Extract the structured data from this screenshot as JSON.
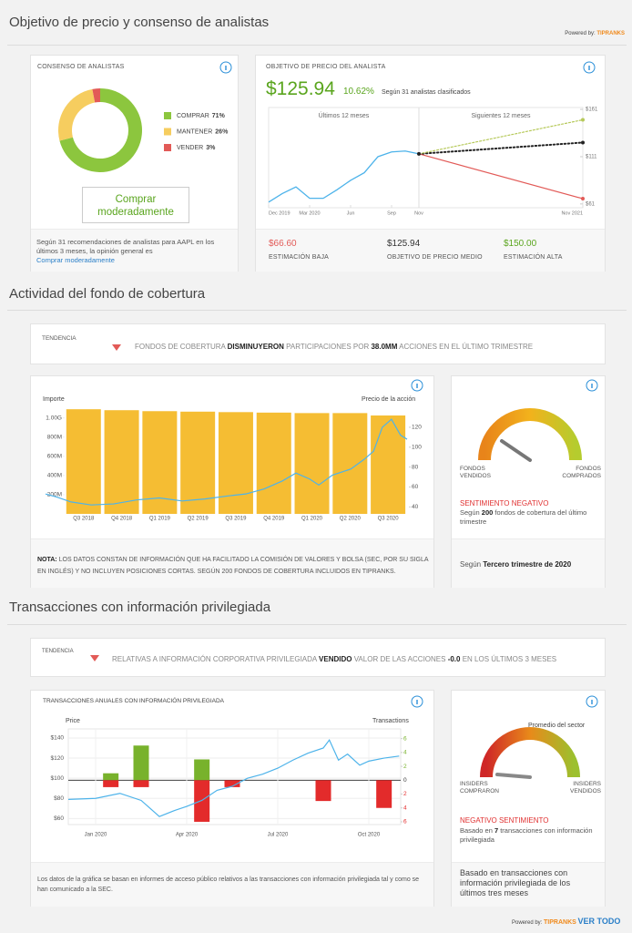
{
  "price_section": {
    "title": "Objetivo de precio y consenso de analistas",
    "powered_by": "Powered by:",
    "brand": "TIPRANKS"
  },
  "hedge_section": {
    "title": "Actividad del fondo de cobertura",
    "trend_label": "TENDENCIA",
    "trend_parts": [
      "FONDOS DE COBERTURA ",
      "DISMINUYERON",
      " PARTICIPACIONES POR ",
      "38.0MM",
      " ACCIONES EN EL ÚLTIMO TRIMESTRE"
    ],
    "note_parts": [
      "NOTA:",
      " LOS DATOS CONSTAN DE INFORMACIÓN QUE HA FACILITADO LA COMISIÓN DE VALORES Y BOLSA (SEC, POR SU SIGLA EN INGLÉS) Y NO INCLUYEN POSICIONES CORTAS. SEGÚN 200 FONDOS DE COBERTURA INCLUIDOS EN TIPRANKS."
    ],
    "gauge": {
      "left": "FONDOS VENDIDOS",
      "right": "FONDOS COMPRADOS",
      "sentiment": "SENTIMIENTO NEGATIVO",
      "basis_parts": [
        "Según ",
        "200",
        " fondos de cobertura del último trimestre"
      ],
      "period_parts": [
        "Según ",
        "Tercero trimestre de 2020"
      ]
    }
  },
  "insider_section": {
    "title": "Transacciones con información privilegiada",
    "trend_label": "TENDENCIA",
    "trend_parts": [
      "RELATIVAS A INFORMACIÓN CORPORATIVA PRIVILEGIADA ",
      "VENDIDO",
      " VALOR DE LAS ACCIONES ",
      "-0.0",
      " EN LOS ÚLTIMOS 3 MESES"
    ],
    "note": "Los datos de la gráfica se basan en informes de acceso público relativos a las transacciones con información privilegiada tal y como se han comunicado a la SEC.",
    "gauge": {
      "sector": "Promedio del sector",
      "left": "INSIDERS COMPRARON",
      "right": "INSIDERS VENDIDOS",
      "sentiment": "NEGATIVO SENTIMIENTO",
      "basis_parts": [
        "Basado en ",
        "7",
        " transacciones con información privilegiada"
      ],
      "footer": "Basado en transacciones con información privilegiada de los últimos tres meses"
    }
  },
  "footer": {
    "powered_by": "Powered by:",
    "brand": "TIPRANKS",
    "link": "VER TODO"
  },
  "chart_data": [
    {
      "type": "pie",
      "title": "CONSENSO DE ANALISTAS",
      "categories": [
        "COMPRAR",
        "MANTENER",
        "VENDER"
      ],
      "values": [
        71,
        26,
        3
      ],
      "value_labels": [
        "71%",
        "26%",
        "3%"
      ],
      "colors": [
        "#8cc63e",
        "#f6cd5f",
        "#e25a57"
      ],
      "consensus": "Comprar moderadamente",
      "summary": "Según 31 recomendaciones de analistas para AAPL en los últimos 3 meses, la opinión general es"
    },
    {
      "type": "line",
      "title": "OBJETIVO DE PRECIO DEL ANALISTA",
      "upside": "10.62%",
      "basis": "Según 31 analistas clasificados",
      "period_labels": [
        "Últimos 12 meses",
        "Siguientes 12 meses"
      ],
      "series": [
        {
          "color": "#4db3ea",
          "x": [
            0,
            1,
            2,
            3,
            4,
            5,
            6,
            7,
            8,
            9,
            10,
            11
          ],
          "values": [
            63,
            72,
            79,
            67,
            67,
            76,
            86,
            94,
            111,
            116,
            117,
            114
          ]
        }
      ],
      "targets": [
        {
          "name": "ESTIMACIÓN BAJA",
          "value": 66.6,
          "label": "$66.60",
          "color": "#e25a57"
        },
        {
          "name": "OBJETIVO DE PRECIO MEDIO",
          "value": 125.94,
          "label": "$125.94",
          "color": "#222222"
        },
        {
          "name": "ESTIMACIÓN ALTA",
          "value": 150,
          "label": "$150.00",
          "color": "#b6c95a"
        }
      ],
      "xlim": [
        0,
        23
      ],
      "xticks": [
        {
          "value": 0,
          "label": "Dec 2019"
        },
        {
          "value": 3,
          "label": "Mar 2020"
        },
        {
          "value": 6,
          "label": "Jun"
        },
        {
          "value": 9,
          "label": "Sep"
        },
        {
          "value": 11,
          "label": "Nov"
        },
        {
          "value": 23,
          "label": "Nov 2021"
        }
      ],
      "ylim": [
        57,
        163
      ],
      "yticks": [
        {
          "value": 161,
          "label": "$161"
        },
        {
          "value": 111,
          "label": "$111"
        },
        {
          "value": 61,
          "label": "$61"
        }
      ]
    },
    {
      "type": "bar",
      "ylabel": "Importe",
      "y2label": "Precio de la acción",
      "categories": [
        "Q3 2018",
        "Q4 2018",
        "Q1 2019",
        "Q2 2019",
        "Q3 2019",
        "Q4 2019",
        "Q1 2020",
        "Q2 2020",
        "Q3 2020"
      ],
      "series": [
        {
          "type": "bar",
          "color": "#f5bd33",
          "values": [
            1090,
            1080,
            1070,
            1065,
            1060,
            1055,
            1050,
            1050,
            1025
          ]
        },
        {
          "type": "line",
          "axis": "y2",
          "color": "#4db3ea",
          "x": [
            -1,
            -0.71,
            -0.33,
            0.2,
            0.79,
            1.39,
            1.99,
            2.59,
            3.19,
            3.79,
            4.26,
            4.74,
            5.22,
            5.58,
            5.94,
            6.18,
            6.54,
            7.02,
            7.38,
            7.62,
            7.85,
            8.09,
            8.33,
            8.5
          ],
          "values": [
            53,
            50,
            45,
            42,
            43,
            47,
            49,
            46,
            48,
            51,
            53,
            58,
            66,
            74,
            68,
            62,
            72,
            78,
            88,
            96,
            120,
            128,
            112,
            108
          ]
        }
      ],
      "xlim": [
        -1,
        8.5
      ],
      "ylim": [
        0,
        1120
      ],
      "yticks": [
        {
          "value": 200,
          "label": "200M"
        },
        {
          "value": 400,
          "label": "400M"
        },
        {
          "value": 600,
          "label": "600M"
        },
        {
          "value": 800,
          "label": "800M"
        },
        {
          "value": 1000,
          "label": "1.00G"
        }
      ],
      "y2lim": [
        33,
        141
      ],
      "y2ticks": [
        40,
        60,
        80,
        100,
        120
      ]
    },
    {
      "type": "bar",
      "title": "TRANSACCIONES ANUALES CON INFORMACIÓN PRIVILEGIADA",
      "ylabel": "Price",
      "y2label": "Transactions",
      "grid": true,
      "series": [
        {
          "type": "bar",
          "axis": "y2",
          "color": "#78b22c",
          "x": [
            0.5,
            1.5,
            3.5
          ],
          "values": [
            1,
            5,
            3
          ]
        },
        {
          "type": "bar",
          "axis": "y2",
          "color": "#e32b2b",
          "x": [
            0.5,
            1.5,
            3.5,
            4.5,
            7.5,
            9.5
          ],
          "values": [
            -1,
            -1,
            -6,
            -1,
            -3,
            -4
          ]
        },
        {
          "type": "line",
          "color": "#4db3ea",
          "x": [
            -0.9,
            0,
            0.8,
            1.5,
            2.1,
            2.6,
            3,
            3.5,
            4,
            4.5,
            5,
            5.5,
            6,
            6.5,
            7,
            7.5,
            7.7,
            8,
            8.3,
            8.7,
            9,
            9.5,
            10
          ],
          "values": [
            79,
            80,
            85,
            78,
            62,
            68,
            72,
            78,
            88,
            92,
            100,
            104,
            110,
            118,
            125,
            130,
            138,
            118,
            124,
            113,
            117,
            120,
            122
          ]
        }
      ],
      "xlim": [
        -0.9,
        10.05
      ],
      "xticks": [
        {
          "value": 0,
          "label": "Jan 2020"
        },
        {
          "value": 3,
          "label": "Apr 2020"
        },
        {
          "value": 6,
          "label": "Jul 2020"
        },
        {
          "value": 9,
          "label": "Oct 2020"
        }
      ],
      "ylim": [
        54,
        149
      ],
      "yticks": [
        {
          "value": 140,
          "label": "$140"
        },
        {
          "value": 120,
          "label": "$120"
        },
        {
          "value": 100,
          "label": "$100"
        },
        {
          "value": 80,
          "label": "$80"
        },
        {
          "value": 60,
          "label": "$60"
        }
      ],
      "y2lim": [
        -6.4,
        7.4
      ],
      "y2ticks": [
        6,
        4,
        2,
        0,
        {
          "value": -2,
          "label": "2"
        },
        {
          "value": -4,
          "label": "4"
        },
        {
          "value": -6,
          "label": "6"
        }
      ]
    }
  ]
}
